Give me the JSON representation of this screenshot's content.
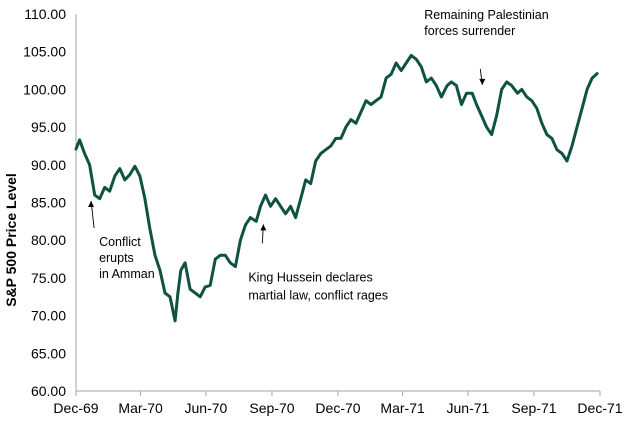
{
  "chart_data": {
    "type": "line",
    "title": "",
    "xlabel": "",
    "ylabel": "S&P 500 Price Level",
    "ylim": [
      60,
      110
    ],
    "yticks": [
      "60.00",
      "65.00",
      "70.00",
      "75.00",
      "80.00",
      "85.00",
      "90.00",
      "95.00",
      "100.00",
      "105.00",
      "110.00"
    ],
    "xlim": [
      "1969-12-31",
      "1971-12-31"
    ],
    "xticks": [
      {
        "date": "1969-12-31",
        "label": "Dec-69"
      },
      {
        "date": "1970-03-31",
        "label": "Mar-70"
      },
      {
        "date": "1970-06-30",
        "label": "Jun-70"
      },
      {
        "date": "1970-09-30",
        "label": "Sep-70"
      },
      {
        "date": "1970-12-31",
        "label": "Dec-70"
      },
      {
        "date": "1971-03-31",
        "label": "Mar-71"
      },
      {
        "date": "1971-06-30",
        "label": "Jun-71"
      },
      {
        "date": "1971-09-30",
        "label": "Sep-71"
      },
      {
        "date": "1971-12-31",
        "label": "Dec-71"
      }
    ],
    "grid": false,
    "line_color": "#0e5242",
    "series": [
      {
        "x": [
          "1969-12-31",
          "1970-01-05",
          "1970-01-12",
          "1970-01-19",
          "1970-01-26",
          "1970-02-02",
          "1970-02-09",
          "1970-02-16",
          "1970-02-23",
          "1970-03-02",
          "1970-03-09",
          "1970-03-16",
          "1970-03-23",
          "1970-03-30",
          "1970-04-06",
          "1970-04-13",
          "1970-04-20",
          "1970-04-27",
          "1970-05-04",
          "1970-05-11",
          "1970-05-18",
          "1970-05-22",
          "1970-05-26",
          "1970-06-01",
          "1970-06-08",
          "1970-06-15",
          "1970-06-22",
          "1970-06-29",
          "1970-07-06",
          "1970-07-13",
          "1970-07-20",
          "1970-07-27",
          "1970-08-03",
          "1970-08-10",
          "1970-08-17",
          "1970-08-24",
          "1970-08-31",
          "1970-09-08",
          "1970-09-14",
          "1970-09-21",
          "1970-09-28",
          "1970-10-05",
          "1970-10-12",
          "1970-10-19",
          "1970-10-26",
          "1970-11-02",
          "1970-11-09",
          "1970-11-16",
          "1970-11-23",
          "1970-11-30",
          "1970-12-07",
          "1970-12-14",
          "1970-12-21",
          "1970-12-28",
          "1971-01-04",
          "1971-01-11",
          "1971-01-18",
          "1971-01-25",
          "1971-02-01",
          "1971-02-08",
          "1971-02-15",
          "1971-02-22",
          "1971-03-01",
          "1971-03-08",
          "1971-03-15",
          "1971-03-22",
          "1971-03-29",
          "1971-04-05",
          "1971-04-12",
          "1971-04-19",
          "1971-04-26",
          "1971-05-03",
          "1971-05-10",
          "1971-05-17",
          "1971-05-24",
          "1971-06-01",
          "1971-06-07",
          "1971-06-14",
          "1971-06-21",
          "1971-06-28",
          "1971-07-06",
          "1971-07-12",
          "1971-07-19",
          "1971-07-26",
          "1971-08-02",
          "1971-08-09",
          "1971-08-16",
          "1971-08-23",
          "1971-08-30",
          "1971-09-07",
          "1971-09-13",
          "1971-09-20",
          "1971-09-27",
          "1971-10-04",
          "1971-10-11",
          "1971-10-18",
          "1971-10-25",
          "1971-11-01",
          "1971-11-08",
          "1971-11-15",
          "1971-11-22",
          "1971-11-29",
          "1971-12-06",
          "1971-12-13",
          "1971-12-20",
          "1971-12-27"
        ],
        "values": [
          92.1,
          93.3,
          91.5,
          90.0,
          86.0,
          85.5,
          87.0,
          86.5,
          88.5,
          89.5,
          88.0,
          88.7,
          89.8,
          88.5,
          85.5,
          81.5,
          78.0,
          76.0,
          73.0,
          72.5,
          69.3,
          73.0,
          76.0,
          77.0,
          73.5,
          73.0,
          72.5,
          73.8,
          74.0,
          77.5,
          78.0,
          78.0,
          77.0,
          76.5,
          80.0,
          82.0,
          83.0,
          82.5,
          84.5,
          86.0,
          84.5,
          85.5,
          84.5,
          83.5,
          84.5,
          83.0,
          85.5,
          88.0,
          87.5,
          90.5,
          91.5,
          92.0,
          92.5,
          93.5,
          93.5,
          95.0,
          96.0,
          95.5,
          97.0,
          98.5,
          98.0,
          98.5,
          99.0,
          101.5,
          102.0,
          103.5,
          102.5,
          103.5,
          104.5,
          104.0,
          103.0,
          101.0,
          101.5,
          100.5,
          99.0,
          100.5,
          101.0,
          100.5,
          98.0,
          99.5,
          99.5,
          98.0,
          96.5,
          95.0,
          94.0,
          96.5,
          100.0,
          101.0,
          100.5,
          99.5,
          100.0,
          99.0,
          98.5,
          97.5,
          95.5,
          94.0,
          93.5,
          92.0,
          91.5,
          90.5,
          92.5,
          95.0,
          97.5,
          100.0,
          101.5,
          102.1
        ]
      }
    ],
    "annotations": [
      {
        "lines": [
          "Conflict",
          "erupts",
          "in Amman"
        ],
        "x": "1970-01-21",
        "y": 85.6
      },
      {
        "lines": [
          "King Hussein declares",
          "martial law, conflict rages"
        ],
        "x": "1970-09-18",
        "y": 82.5
      },
      {
        "lines": [
          "Remaining Palestinian",
          "forces surrender"
        ],
        "x": "1971-07-20",
        "y": 100.2
      }
    ]
  }
}
